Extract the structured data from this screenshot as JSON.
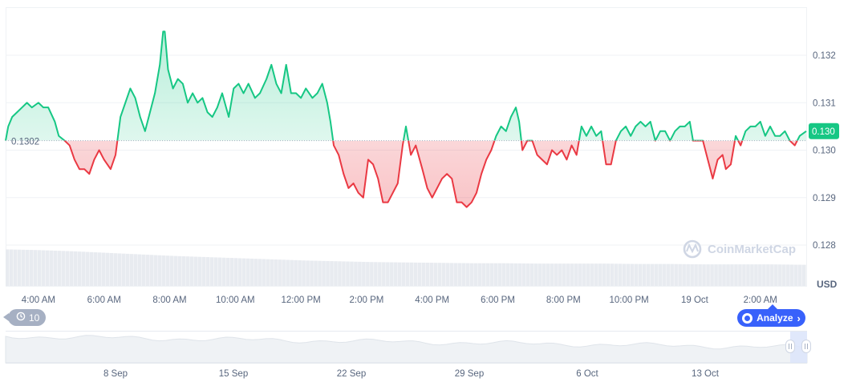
{
  "chart_data": {
    "type": "area",
    "base_value": 0.1302,
    "base_label": "0.1302",
    "current_price": "0.130",
    "unit": "USD",
    "y_ticks": [
      "0.128",
      "0.129",
      "0.130",
      "0.131",
      "0.132"
    ],
    "y_tick_values": [
      0.128,
      0.129,
      0.13,
      0.131,
      0.132
    ],
    "ylim": [
      0.1277,
      0.133
    ],
    "x_ticks": [
      "4:00 AM",
      "6:00 AM",
      "8:00 AM",
      "10:00 AM",
      "12:00 PM",
      "2:00 PM",
      "4:00 PM",
      "6:00 PM",
      "8:00 PM",
      "10:00 PM",
      "19 Oct",
      "2:00 AM"
    ],
    "x_tick_hours": [
      1,
      3,
      5,
      7,
      9,
      11,
      13,
      15,
      17,
      19,
      21,
      23
    ],
    "x_range_hours": [
      0,
      24.4
    ],
    "series": [
      {
        "points": [
          [
            0.0,
            0.1302
          ],
          [
            0.08,
            0.1305
          ],
          [
            0.2,
            0.1307
          ],
          [
            0.35,
            0.1308
          ],
          [
            0.5,
            0.1309
          ],
          [
            0.65,
            0.131
          ],
          [
            0.8,
            0.1309
          ],
          [
            1.0,
            0.131
          ],
          [
            1.15,
            0.1309
          ],
          [
            1.3,
            0.1309
          ],
          [
            1.5,
            0.1306
          ],
          [
            1.62,
            0.1303
          ],
          [
            1.8,
            0.1302
          ],
          [
            1.95,
            0.1301
          ],
          [
            2.1,
            0.1298
          ],
          [
            2.25,
            0.1296
          ],
          [
            2.4,
            0.1296
          ],
          [
            2.55,
            0.1295
          ],
          [
            2.7,
            0.1298
          ],
          [
            2.85,
            0.13
          ],
          [
            3.0,
            0.1298
          ],
          [
            3.2,
            0.1296
          ],
          [
            3.35,
            0.1299
          ],
          [
            3.5,
            0.1307
          ],
          [
            3.65,
            0.131
          ],
          [
            3.8,
            0.1313
          ],
          [
            3.95,
            0.1311
          ],
          [
            4.1,
            0.1307
          ],
          [
            4.25,
            0.1304
          ],
          [
            4.4,
            0.1308
          ],
          [
            4.55,
            0.1312
          ],
          [
            4.7,
            0.1318
          ],
          [
            4.8,
            0.1325
          ],
          [
            4.85,
            0.1325
          ],
          [
            4.95,
            0.1317
          ],
          [
            5.1,
            0.1313
          ],
          [
            5.25,
            0.1315
          ],
          [
            5.4,
            0.1314
          ],
          [
            5.55,
            0.131
          ],
          [
            5.7,
            0.1312
          ],
          [
            5.85,
            0.131
          ],
          [
            6.0,
            0.1311
          ],
          [
            6.15,
            0.1308
          ],
          [
            6.3,
            0.1307
          ],
          [
            6.45,
            0.1309
          ],
          [
            6.6,
            0.1312
          ],
          [
            6.8,
            0.1307
          ],
          [
            6.95,
            0.1313
          ],
          [
            7.1,
            0.1314
          ],
          [
            7.25,
            0.1312
          ],
          [
            7.4,
            0.1314
          ],
          [
            7.6,
            0.1311
          ],
          [
            7.75,
            0.1312
          ],
          [
            7.95,
            0.1315
          ],
          [
            8.1,
            0.1318
          ],
          [
            8.25,
            0.1314
          ],
          [
            8.4,
            0.1312
          ],
          [
            8.55,
            0.1318
          ],
          [
            8.7,
            0.1312
          ],
          [
            8.85,
            0.1312
          ],
          [
            9.0,
            0.1311
          ],
          [
            9.15,
            0.1313
          ],
          [
            9.35,
            0.1311
          ],
          [
            9.5,
            0.1312
          ],
          [
            9.65,
            0.1314
          ],
          [
            9.8,
            0.131
          ],
          [
            9.9,
            0.1306
          ],
          [
            10.0,
            0.1301
          ],
          [
            10.15,
            0.1299
          ],
          [
            10.3,
            0.1295
          ],
          [
            10.45,
            0.1292
          ],
          [
            10.6,
            0.1293
          ],
          [
            10.75,
            0.1291
          ],
          [
            10.9,
            0.129
          ],
          [
            11.05,
            0.1298
          ],
          [
            11.2,
            0.1297
          ],
          [
            11.35,
            0.1294
          ],
          [
            11.5,
            0.1289
          ],
          [
            11.65,
            0.1289
          ],
          [
            11.8,
            0.1291
          ],
          [
            11.95,
            0.1293
          ],
          [
            12.1,
            0.1301
          ],
          [
            12.2,
            0.1305
          ],
          [
            12.35,
            0.1299
          ],
          [
            12.5,
            0.1301
          ],
          [
            12.7,
            0.1296
          ],
          [
            12.85,
            0.1292
          ],
          [
            13.0,
            0.129
          ],
          [
            13.15,
            0.1292
          ],
          [
            13.3,
            0.1294
          ],
          [
            13.45,
            0.1295
          ],
          [
            13.6,
            0.1294
          ],
          [
            13.75,
            0.1289
          ],
          [
            13.9,
            0.1289
          ],
          [
            14.05,
            0.1288
          ],
          [
            14.2,
            0.1289
          ],
          [
            14.35,
            0.1291
          ],
          [
            14.5,
            0.1295
          ],
          [
            14.65,
            0.1298
          ],
          [
            14.8,
            0.13
          ],
          [
            14.95,
            0.1303
          ],
          [
            15.1,
            0.1305
          ],
          [
            15.25,
            0.1304
          ],
          [
            15.4,
            0.1307
          ],
          [
            15.55,
            0.1309
          ],
          [
            15.65,
            0.1306
          ],
          [
            15.75,
            0.13
          ],
          [
            15.9,
            0.1302
          ],
          [
            16.05,
            0.1302
          ],
          [
            16.2,
            0.1299
          ],
          [
            16.35,
            0.1298
          ],
          [
            16.5,
            0.1297
          ],
          [
            16.65,
            0.13
          ],
          [
            16.8,
            0.1299
          ],
          [
            16.95,
            0.13
          ],
          [
            17.1,
            0.1298
          ],
          [
            17.25,
            0.1301
          ],
          [
            17.4,
            0.1299
          ],
          [
            17.55,
            0.1305
          ],
          [
            17.7,
            0.1303
          ],
          [
            17.85,
            0.1305
          ],
          [
            18.0,
            0.1303
          ],
          [
            18.15,
            0.1304
          ],
          [
            18.3,
            0.1297
          ],
          [
            18.45,
            0.1297
          ],
          [
            18.6,
            0.1302
          ],
          [
            18.75,
            0.1304
          ],
          [
            18.9,
            0.1305
          ],
          [
            19.05,
            0.1303
          ],
          [
            19.2,
            0.1305
          ],
          [
            19.35,
            0.1306
          ],
          [
            19.5,
            0.1305
          ],
          [
            19.65,
            0.1306
          ],
          [
            19.8,
            0.1302
          ],
          [
            19.95,
            0.1304
          ],
          [
            20.1,
            0.1304
          ],
          [
            20.25,
            0.1302
          ],
          [
            20.4,
            0.1304
          ],
          [
            20.55,
            0.1305
          ],
          [
            20.7,
            0.1305
          ],
          [
            20.85,
            0.1306
          ],
          [
            20.95,
            0.1302
          ],
          [
            21.1,
            0.1302
          ],
          [
            21.25,
            0.1302
          ],
          [
            21.4,
            0.1298
          ],
          [
            21.55,
            0.1294
          ],
          [
            21.7,
            0.1298
          ],
          [
            21.85,
            0.1299
          ],
          [
            21.95,
            0.1296
          ],
          [
            22.1,
            0.1297
          ],
          [
            22.25,
            0.1303
          ],
          [
            22.4,
            0.1301
          ],
          [
            22.55,
            0.1304
          ],
          [
            22.7,
            0.1305
          ],
          [
            22.85,
            0.1305
          ],
          [
            23.0,
            0.1306
          ],
          [
            23.15,
            0.1303
          ],
          [
            23.3,
            0.1305
          ],
          [
            23.45,
            0.1303
          ],
          [
            23.6,
            0.1303
          ],
          [
            23.75,
            0.1304
          ],
          [
            23.9,
            0.1302
          ],
          [
            24.05,
            0.1301
          ],
          [
            24.2,
            0.1303
          ],
          [
            24.4,
            0.1304
          ]
        ]
      }
    ],
    "volume_profile": [
      0.95,
      0.93,
      0.9,
      0.86,
      0.82,
      0.78,
      0.75,
      0.72,
      0.69,
      0.66,
      0.64,
      0.62,
      0.61,
      0.6,
      0.59,
      0.59,
      0.58,
      0.58,
      0.58,
      0.57,
      0.57,
      0.56,
      0.56,
      0.56,
      0.55
    ],
    "colors": {
      "up": "#16c784",
      "down": "#ea3943",
      "up_fill": "#16c784",
      "down_fill": "#ea3943",
      "grid": "#eff2f5",
      "tag_bg": "#16c784",
      "volume": "#e8ebf0",
      "navigator_fill": "#eff2f5"
    },
    "navigator": {
      "x_ticks": [
        "8 Sep",
        "15 Sep",
        "22 Sep",
        "29 Sep",
        "6 Oct",
        "13 Oct"
      ]
    }
  },
  "watermark": {
    "text": "CoinMarketCap",
    "icon": "coinmarketcap-logo-icon"
  },
  "controls": {
    "history_badge": "10",
    "history_icon": "history-clock-icon",
    "analyze_label": "Analyze",
    "analyze_chevron": "›"
  }
}
